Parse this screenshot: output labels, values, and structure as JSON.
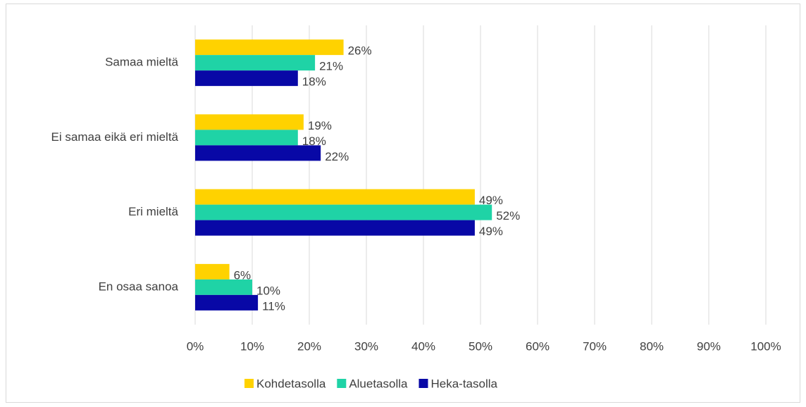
{
  "chart_data": {
    "type": "hbar",
    "categories": [
      "Samaa mieltä",
      "Ei samaa eikä eri mieltä",
      "Eri mieltä",
      "En osaa sanoa"
    ],
    "series": [
      {
        "name": "Kohdetasolla",
        "color": "#ffd200",
        "values": [
          26,
          19,
          49,
          6
        ],
        "value_labels": [
          "26%",
          "19%",
          "49%",
          "6%"
        ]
      },
      {
        "name": "Aluetasolla",
        "color": "#1fd3a6",
        "values": [
          21,
          18,
          52,
          10
        ],
        "value_labels": [
          "21%",
          "18%",
          "52%",
          "10%"
        ]
      },
      {
        "name": "Heka-tasolla",
        "color": "#0808a6",
        "values": [
          18,
          22,
          49,
          11
        ],
        "value_labels": [
          "18%",
          "22%",
          "49%",
          "11%"
        ]
      }
    ],
    "xlim": [
      0,
      100
    ],
    "xticks": [
      {
        "value": 0,
        "label": "0%"
      },
      {
        "value": 10,
        "label": "10%"
      },
      {
        "value": 20,
        "label": "20%"
      },
      {
        "value": 30,
        "label": "30%"
      },
      {
        "value": 40,
        "label": "40%"
      },
      {
        "value": 50,
        "label": "50%"
      },
      {
        "value": 60,
        "label": "60%"
      },
      {
        "value": 70,
        "label": "70%"
      },
      {
        "value": 80,
        "label": "80%"
      },
      {
        "value": 90,
        "label": "90%"
      },
      {
        "value": 100,
        "label": "100%"
      }
    ],
    "grid": true,
    "legend": "bottom"
  }
}
